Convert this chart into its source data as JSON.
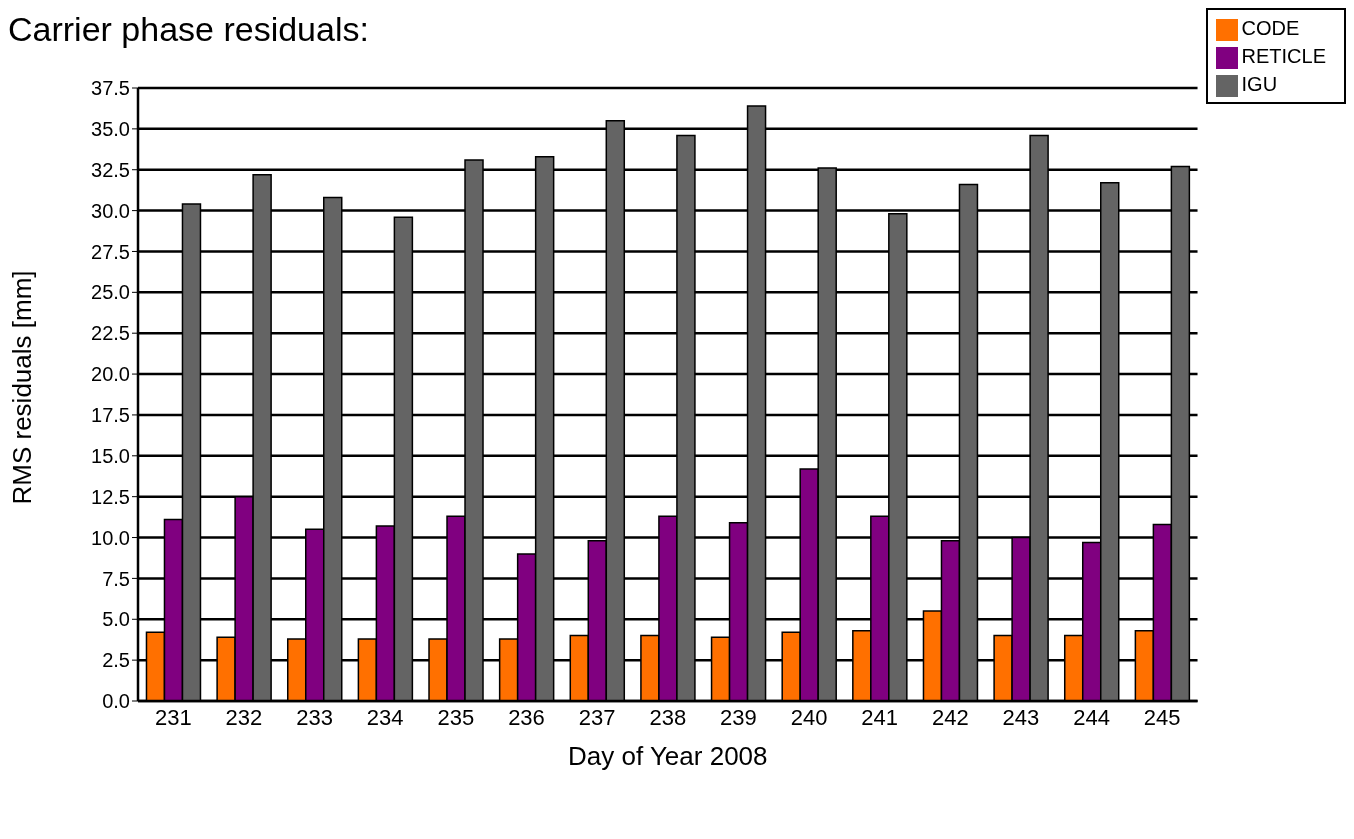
{
  "chart_data": {
    "type": "bar",
    "title": "Carrier phase residuals:",
    "xlabel": "Day of Year 2008",
    "ylabel": "RMS residuals [mm]",
    "categories": [
      "231",
      "232",
      "233",
      "234",
      "235",
      "236",
      "237",
      "238",
      "239",
      "240",
      "241",
      "242",
      "243",
      "244",
      "245"
    ],
    "series": [
      {
        "name": "CODE",
        "color": "#ff7000",
        "values": [
          4.2,
          3.9,
          3.8,
          3.8,
          3.8,
          3.8,
          4.0,
          4.0,
          3.9,
          4.2,
          4.3,
          5.5,
          4.0,
          4.0,
          4.3
        ]
      },
      {
        "name": "RETICLE",
        "color": "#800080",
        "values": [
          11.1,
          12.5,
          10.5,
          10.7,
          11.3,
          9.0,
          9.8,
          11.3,
          10.9,
          14.2,
          11.3,
          9.8,
          10.0,
          9.7,
          10.8
        ]
      },
      {
        "name": "IGU",
        "color": "#646464",
        "values": [
          30.4,
          32.2,
          30.8,
          29.6,
          33.1,
          33.3,
          35.5,
          34.6,
          36.4,
          32.6,
          29.8,
          31.6,
          34.6,
          31.7,
          32.7
        ]
      }
    ],
    "ylim": [
      0,
      37.5
    ],
    "yticks": [
      {
        "value": 0,
        "label": "0.0"
      },
      {
        "value": 2.5,
        "label": "2.5"
      },
      {
        "value": 5,
        "label": "5.0"
      },
      {
        "value": 7.5,
        "label": "7.5"
      },
      {
        "value": 10,
        "label": "10.0"
      },
      {
        "value": 12.5,
        "label": "12.5"
      },
      {
        "value": 15,
        "label": "15.0"
      },
      {
        "value": 17.5,
        "label": "17.5"
      },
      {
        "value": 20,
        "label": "20.0"
      },
      {
        "value": 22.5,
        "label": "22.5"
      },
      {
        "value": 25,
        "label": "25.0"
      },
      {
        "value": 27.5,
        "label": "27.5"
      },
      {
        "value": 30,
        "label": "30.0"
      },
      {
        "value": 32.5,
        "label": "32.5"
      },
      {
        "value": 35,
        "label": "35.0"
      },
      {
        "value": 37.5,
        "label": "37.5"
      }
    ],
    "grid": "y",
    "legend": "top right"
  }
}
